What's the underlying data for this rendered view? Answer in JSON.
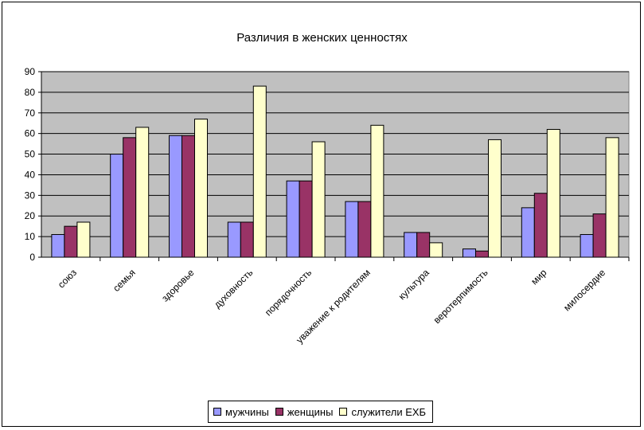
{
  "chart_data": {
    "type": "bar",
    "title": "Различия в женских ценностях",
    "categories": [
      "союз",
      "семья",
      "здоровье",
      "духовность",
      "порядочность",
      "уважение к родителям",
      "культура",
      "веротерпимость",
      "мир",
      "милосердие"
    ],
    "series": [
      {
        "name": "мужчины",
        "color": "#9999ff",
        "values": [
          11,
          50,
          59,
          17,
          37,
          27,
          12,
          4,
          24,
          11
        ]
      },
      {
        "name": "женщины",
        "color": "#993366",
        "values": [
          15,
          58,
          59,
          17,
          37,
          27,
          12,
          3,
          31,
          21
        ]
      },
      {
        "name": "служители ЕХБ",
        "color": "#ffffcc",
        "values": [
          17,
          63,
          67,
          83,
          56,
          64,
          7,
          57,
          62,
          58
        ]
      }
    ],
    "ylim": [
      0,
      90
    ],
    "yticks": [
      0,
      10,
      20,
      30,
      40,
      50,
      60,
      70,
      80,
      90
    ],
    "grid": true,
    "plot_background": "#c0c0c0",
    "legend_position": "bottom"
  }
}
